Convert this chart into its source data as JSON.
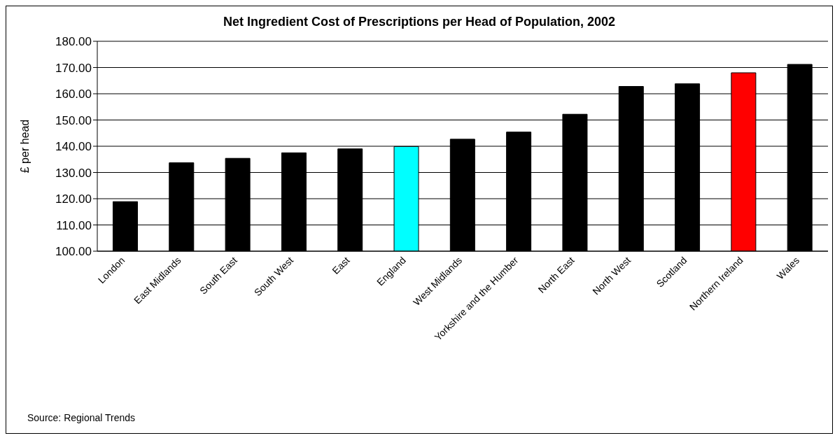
{
  "chart_data": {
    "type": "bar",
    "title": "Net Ingredient Cost of Prescriptions per Head of Population, 2002",
    "ylabel": "£ per head",
    "categories": [
      "London",
      "East Midlands",
      "South East",
      "South West",
      "East",
      "England",
      "West Midlands",
      "Yorkshire and the Humber",
      "North East",
      "North West",
      "Scotland",
      "Northern Ireland",
      "Wales"
    ],
    "values": [
      118.9,
      133.7,
      135.4,
      137.5,
      139.0,
      139.9,
      142.7,
      145.4,
      152.2,
      162.8,
      163.8,
      168.0,
      171.2
    ],
    "colors": [
      "#000000",
      "#000000",
      "#000000",
      "#000000",
      "#000000",
      "#00ffff",
      "#000000",
      "#000000",
      "#000000",
      "#000000",
      "#000000",
      "#ff0000",
      "#000000"
    ],
    "ylim": [
      100,
      180
    ],
    "yticks": [
      {
        "value": 100,
        "label": "100.00"
      },
      {
        "value": 110,
        "label": "110.00"
      },
      {
        "value": 120,
        "label": "120.00"
      },
      {
        "value": 130,
        "label": "130.00"
      },
      {
        "value": 140,
        "label": "140.00"
      },
      {
        "value": 150,
        "label": "150.00"
      },
      {
        "value": 160,
        "label": "160.00"
      },
      {
        "value": 170,
        "label": "170.00"
      },
      {
        "value": 180,
        "label": "180.00"
      }
    ],
    "grid": "y",
    "legend": false,
    "annotations": [
      "Source: Regional Trends"
    ]
  }
}
